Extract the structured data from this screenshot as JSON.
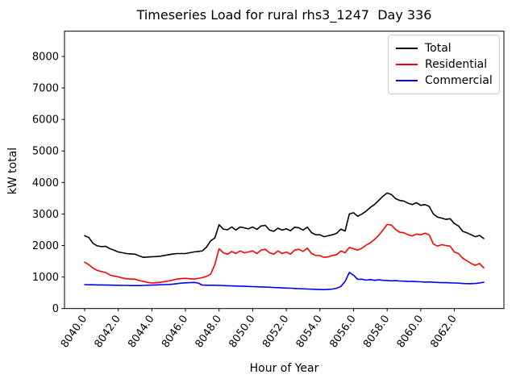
{
  "chart_data": {
    "type": "line",
    "title": "Timeseries Load for rural rhs3_1247  Day 336",
    "xlabel": "Hour of Year",
    "ylabel": "kW total",
    "xlim": [
      8038.8,
      8064.95
    ],
    "ylim": [
      0,
      8800
    ],
    "xticks": [
      8040,
      8042,
      8044,
      8046,
      8048,
      8050,
      8052,
      8054,
      8056,
      8058,
      8060,
      8062
    ],
    "xtick_labels": [
      "8040.0",
      "8042.0",
      "8044.0",
      "8046.0",
      "8048.0",
      "8050.0",
      "8052.0",
      "8054.0",
      "8056.0",
      "8058.0",
      "8060.0",
      "8062.0"
    ],
    "yticks": [
      0,
      1000,
      2000,
      3000,
      4000,
      5000,
      6000,
      7000,
      8000
    ],
    "ytick_labels": [
      "0",
      "1000",
      "2000",
      "3000",
      "4000",
      "5000",
      "6000",
      "7000",
      "8000"
    ],
    "grid": false,
    "legend_position": "upper right",
    "x": [
      8040.0,
      8040.25,
      8040.5,
      8040.75,
      8041.0,
      8041.25,
      8041.5,
      8041.75,
      8042.0,
      8042.25,
      8042.5,
      8042.75,
      8043.0,
      8043.25,
      8043.5,
      8043.75,
      8044.0,
      8044.25,
      8044.5,
      8044.75,
      8045.0,
      8045.25,
      8045.5,
      8045.75,
      8046.0,
      8046.25,
      8046.5,
      8046.75,
      8047.0,
      8047.25,
      8047.5,
      8047.75,
      8048.0,
      8048.25,
      8048.5,
      8048.75,
      8049.0,
      8049.25,
      8049.5,
      8049.75,
      8050.0,
      8050.25,
      8050.5,
      8050.75,
      8051.0,
      8051.25,
      8051.5,
      8051.75,
      8052.0,
      8052.25,
      8052.5,
      8052.75,
      8053.0,
      8053.25,
      8053.5,
      8053.75,
      8054.0,
      8054.25,
      8054.5,
      8054.75,
      8055.0,
      8055.25,
      8055.5,
      8055.75,
      8056.0,
      8056.25,
      8056.5,
      8056.75,
      8057.0,
      8057.25,
      8057.5,
      8057.75,
      8058.0,
      8058.25,
      8058.5,
      8058.75,
      8059.0,
      8059.25,
      8059.5,
      8059.75,
      8060.0,
      8060.25,
      8060.5,
      8060.75,
      8061.0,
      8061.25,
      8061.5,
      8061.75,
      8062.0,
      8062.25,
      8062.5,
      8062.75,
      8063.0,
      8063.25,
      8063.5,
      8063.75
    ],
    "series": [
      {
        "name": "Total",
        "color": "#000000",
        "values": [
          2310,
          2250,
          2070,
          1990,
          1965,
          1975,
          1900,
          1850,
          1795,
          1770,
          1745,
          1735,
          1725,
          1670,
          1625,
          1635,
          1645,
          1650,
          1660,
          1685,
          1710,
          1730,
          1745,
          1745,
          1745,
          1770,
          1795,
          1810,
          1830,
          1950,
          2150,
          2240,
          2660,
          2520,
          2500,
          2590,
          2490,
          2590,
          2560,
          2530,
          2590,
          2510,
          2620,
          2640,
          2490,
          2450,
          2550,
          2490,
          2530,
          2470,
          2580,
          2560,
          2490,
          2580,
          2410,
          2340,
          2340,
          2280,
          2310,
          2340,
          2390,
          2520,
          2460,
          3000,
          3040,
          2930,
          3000,
          3090,
          3210,
          3300,
          3430,
          3560,
          3665,
          3620,
          3490,
          3430,
          3410,
          3340,
          3300,
          3360,
          3275,
          3300,
          3240,
          3000,
          2900,
          2870,
          2830,
          2850,
          2700,
          2620,
          2450,
          2405,
          2340,
          2280,
          2320,
          2220
        ]
      },
      {
        "name": "Residential",
        "color": "#ff0000",
        "values": [
          1470,
          1390,
          1285,
          1210,
          1175,
          1140,
          1065,
          1030,
          1005,
          970,
          945,
          935,
          930,
          890,
          860,
          830,
          810,
          820,
          835,
          855,
          875,
          905,
          935,
          950,
          960,
          945,
          935,
          955,
          980,
          1020,
          1090,
          1400,
          1895,
          1770,
          1725,
          1810,
          1745,
          1830,
          1770,
          1795,
          1830,
          1745,
          1855,
          1880,
          1770,
          1725,
          1830,
          1745,
          1795,
          1725,
          1855,
          1880,
          1810,
          1915,
          1745,
          1685,
          1680,
          1625,
          1640,
          1685,
          1710,
          1830,
          1770,
          1940,
          1895,
          1855,
          1915,
          2010,
          2085,
          2195,
          2320,
          2490,
          2665,
          2650,
          2510,
          2420,
          2405,
          2340,
          2305,
          2365,
          2340,
          2390,
          2340,
          2050,
          1980,
          2025,
          2000,
          1980,
          1795,
          1745,
          1600,
          1515,
          1430,
          1370,
          1430,
          1290
        ]
      },
      {
        "name": "Commercial",
        "color": "#0000ff",
        "values": [
          760,
          755,
          755,
          750,
          750,
          745,
          745,
          740,
          740,
          735,
          735,
          730,
          730,
          730,
          735,
          740,
          745,
          750,
          755,
          760,
          765,
          775,
          790,
          805,
          815,
          820,
          830,
          810,
          745,
          740,
          740,
          740,
          735,
          730,
          725,
          720,
          715,
          710,
          705,
          700,
          695,
          690,
          685,
          680,
          675,
          668,
          662,
          656,
          650,
          645,
          638,
          632,
          626,
          620,
          615,
          610,
          605,
          600,
          610,
          620,
          645,
          700,
          860,
          1145,
          1060,
          925,
          930,
          900,
          920,
          895,
          910,
          895,
          890,
          880,
          885,
          875,
          870,
          860,
          865,
          855,
          850,
          840,
          845,
          835,
          830,
          820,
          820,
          815,
          810,
          805,
          795,
          790,
          790,
          795,
          810,
          835
        ]
      }
    ]
  }
}
